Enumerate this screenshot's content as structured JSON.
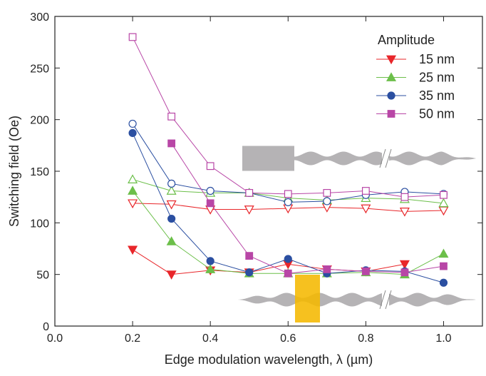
{
  "chart_data": {
    "type": "line",
    "x_label": "Edge modulation wavelength, λ (µm)",
    "y_label": "Switching field (Oe)",
    "legend_title": "Amplitude",
    "legend_position": "upper right",
    "x": [
      0.2,
      0.3,
      0.4,
      0.5,
      0.6,
      0.7,
      0.8,
      0.9,
      1.0
    ],
    "xlim": [
      0,
      1.1
    ],
    "xticks": [
      {
        "value": 0,
        "label": "0.0"
      },
      0.2,
      0.4,
      0.6,
      0.8,
      {
        "value": 1,
        "label": "1.0"
      }
    ],
    "ylim": [
      0,
      300
    ],
    "yticks": [
      0,
      50,
      100,
      150,
      200,
      250,
      300
    ],
    "series": [
      {
        "name": "15 nm",
        "color": "#e8262a",
        "marker": "triangle-down",
        "values": [
          74,
          50,
          54,
          52,
          60,
          55,
          53,
          60,
          null
        ],
        "values_open": [
          119,
          118,
          113,
          113,
          114,
          115,
          114,
          111,
          112
        ]
      },
      {
        "name": "25 nm",
        "color": "#6cbf4a",
        "marker": "triangle-up",
        "values": [
          131,
          82,
          55,
          51,
          51,
          51,
          52,
          50,
          70
        ],
        "values_open": [
          142,
          131,
          129,
          129,
          124,
          122,
          124,
          123,
          119
        ]
      },
      {
        "name": "35 nm",
        "color": "#2b4fa1",
        "marker": "circle",
        "values": [
          187,
          104,
          63,
          52,
          65,
          51,
          54,
          53,
          42
        ],
        "values_open": [
          196,
          138,
          131,
          129,
          120,
          121,
          127,
          130,
          128
        ]
      },
      {
        "name": "50 nm",
        "color": "#b846a6",
        "marker": "square",
        "values": [
          null,
          177,
          119,
          68,
          51,
          55,
          53,
          52,
          58
        ],
        "values_open": [
          280,
          203,
          155,
          129,
          128,
          129,
          131,
          125,
          127
        ]
      }
    ]
  }
}
